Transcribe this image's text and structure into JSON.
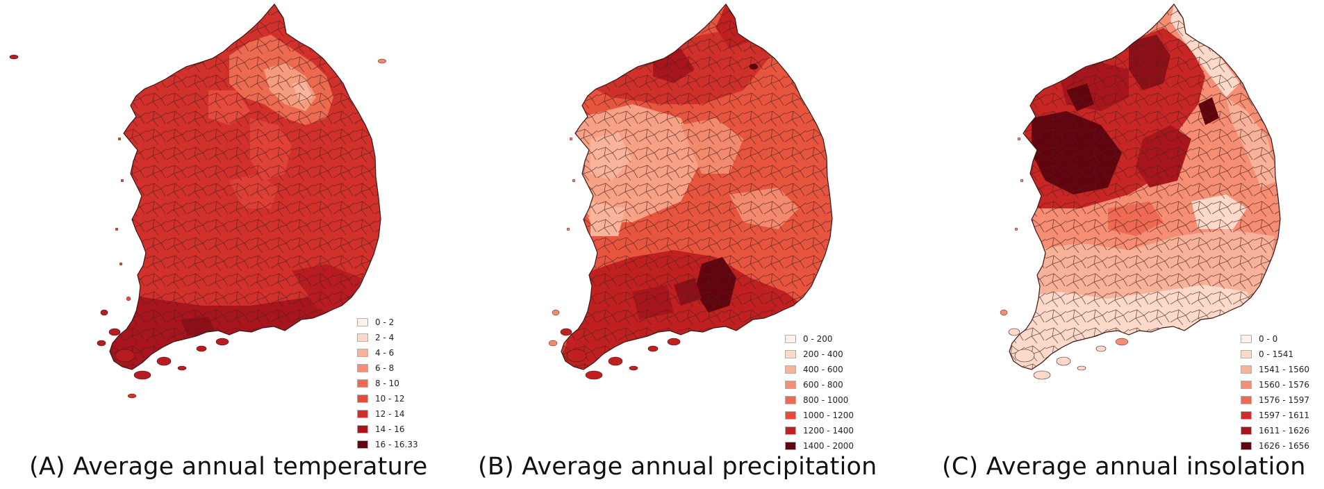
{
  "panels": [
    {
      "caption": "(A) Average annual temperature",
      "legend": [
        {
          "label": "0 - 2",
          "color": "#fdf0ea"
        },
        {
          "label": "2 - 4",
          "color": "#fcd9c9"
        },
        {
          "label": "4 - 6",
          "color": "#f9b29a"
        },
        {
          "label": "6 - 8",
          "color": "#f58e73"
        },
        {
          "label": "8 - 10",
          "color": "#ef6a52"
        },
        {
          "label": "10 - 12",
          "color": "#e54a3c"
        },
        {
          "label": "12 - 14",
          "color": "#d12c29"
        },
        {
          "label": "14 - 16",
          "color": "#a8151d"
        },
        {
          "label": "16 - 16.33",
          "color": "#62040e"
        }
      ]
    },
    {
      "caption": "(B) Average annual precipitation",
      "legend": [
        {
          "label": "0 - 200",
          "color": "#fdf0ea"
        },
        {
          "label": "200 - 400",
          "color": "#fcd9c9"
        },
        {
          "label": "400 - 600",
          "color": "#f9b29a"
        },
        {
          "label": "600 - 800",
          "color": "#f58e73"
        },
        {
          "label": "800 - 1000",
          "color": "#ef6a52"
        },
        {
          "label": "1000 - 1200",
          "color": "#e54a3c"
        },
        {
          "label": "1200 - 1400",
          "color": "#c0201f"
        },
        {
          "label": "1400 - 2000",
          "color": "#62040e"
        }
      ]
    },
    {
      "caption": "(C) Average annual insolation",
      "legend": [
        {
          "label": "0 - 0",
          "color": "#fdf0ea"
        },
        {
          "label": "0 - 1541",
          "color": "#fcd9c9"
        },
        {
          "label": "1541 - 1560",
          "color": "#f9b29a"
        },
        {
          "label": "1560 - 1576",
          "color": "#f58e73"
        },
        {
          "label": "1576 - 1597",
          "color": "#ef6a52"
        },
        {
          "label": "1597 - 1611",
          "color": "#d12c29"
        },
        {
          "label": "1611 - 1626",
          "color": "#a8151d"
        },
        {
          "label": "1626 - 1656",
          "color": "#62040e"
        }
      ]
    }
  ]
}
